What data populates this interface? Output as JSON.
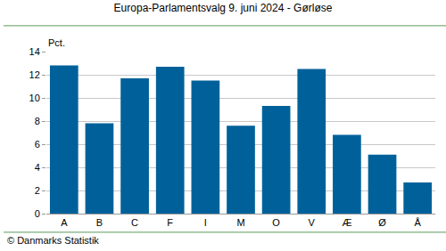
{
  "chart_data": {
    "type": "bar",
    "title": "Europa-Parlamentsvalg 9. juni 2024 - Gørløse",
    "y_label": "Pct.",
    "categories": [
      "A",
      "B",
      "C",
      "F",
      "I",
      "M",
      "O",
      "V",
      "Æ",
      "Ø",
      "Å"
    ],
    "values": [
      12.8,
      7.8,
      11.7,
      12.7,
      11.5,
      7.6,
      9.3,
      12.5,
      6.8,
      5.1,
      2.7
    ],
    "color": "#00619a",
    "ylim": [
      0,
      14
    ],
    "yticks": [
      0,
      2,
      4,
      6,
      8,
      10,
      12,
      14
    ],
    "grid": true,
    "annotations": [
      "© Danmarks Statistik"
    ]
  }
}
